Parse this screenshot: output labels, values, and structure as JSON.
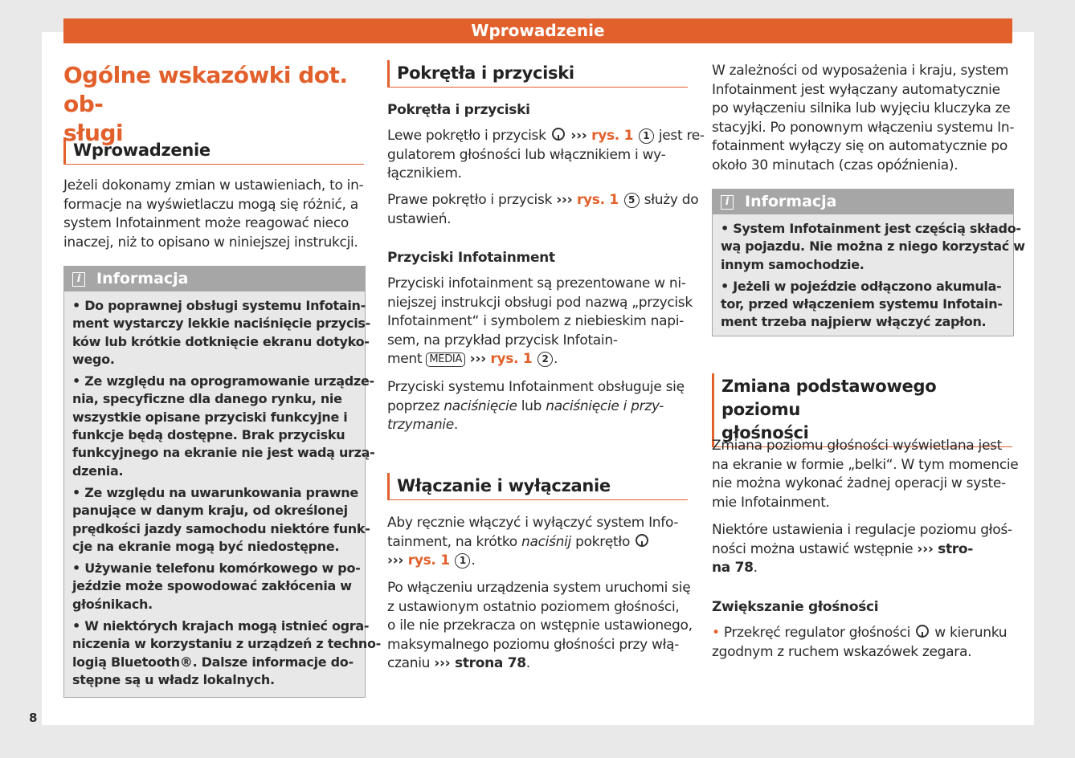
{
  "header": {
    "title": "Wprowadzenie"
  },
  "page_number": "8",
  "col1": {
    "title": [
      "Ogólne wskazówki dot. ob-",
      "sługi"
    ],
    "heading": "Wprowadzenie",
    "p1": [
      "Jeżeli dokonamy zmian w ustawieniach, to in-",
      "formacje na wyświetlaczu mogą się różnić, a",
      "system Infotainment może reagować nieco",
      "inaczej, niż to opisano w niniejszej instrukcji."
    ],
    "info": {
      "title": "Informacja",
      "icon": "info-icon",
      "b1": [
        "• Do poprawnej obsługi systemu Infotain-",
        "ment wystarczy lekkie naciśnięcie przycis-",
        "ków lub krótkie dotknięcie ekranu dotyko-",
        "wego."
      ],
      "b2": [
        "• Ze względu na oprogramowanie urządze-",
        "nia, specyficzne dla danego rynku, nie",
        "wszystkie opisane przyciski funkcyjne i",
        "funkcje będą dostępne. Brak przycisku",
        "funkcyjnego na ekranie nie jest wadą urzą-",
        "dzenia."
      ],
      "b3": [
        "• Ze względu na uwarunkowania prawne",
        "panujące w danym kraju, od określonej",
        "prędkości jazdy samochodu niektóre funk-",
        "cje na ekranie mogą być niedostępne."
      ],
      "b4": [
        "• Używanie telefonu komórkowego w po-",
        "jeździe może spowodować zakłócenia w",
        "głośnikach."
      ],
      "b5": [
        "• W niektórych krajach mogą istnieć ogra-",
        "niczenia w korzystaniu z urządzeń z techno-",
        "logią Bluetooth®. Dalsze informacje do-",
        "stępne są u władz lokalnych."
      ]
    }
  },
  "col2": {
    "heading1": "Pokrętła i przyciski",
    "sub1": [
      "Pokrętła i przyciski"
    ],
    "p1": [
      [
        [
          "Lewe pokrętło i przycisk ",
          ""
        ],
        [
          "",
          "k"
        ],
        [
          " ››› ",
          "b"
        ],
        [
          "rys. 1 ",
          "o"
        ],
        [
          "1",
          "c"
        ],
        [
          " jest re-",
          ""
        ]
      ],
      "gulatorem głośności lub włącznikiem i wy-",
      "łącznikiem."
    ],
    "p2": [
      [
        [
          "Prawe pokrętło i przycisk ",
          ""
        ],
        [
          "››› ",
          "b"
        ],
        [
          "rys. 1 ",
          "o"
        ],
        [
          "5",
          "c"
        ],
        [
          " służy do",
          ""
        ]
      ],
      "ustawień."
    ],
    "sub2": [
      "Przyciski Infotainment"
    ],
    "p3": [
      "Przyciski infotainment są prezentowane w ni-",
      "niejszej instrukcji obsługi pod nazwą „przycisk",
      "Infotainment“ i symbolem z niebieskim napi-",
      "sem, na przykład przycisk Infotain-",
      [
        [
          "ment ",
          ""
        ],
        [
          "MEDIA",
          "m"
        ],
        [
          " ››› ",
          "b"
        ],
        [
          "rys. 1 ",
          "o"
        ],
        [
          "2",
          "c"
        ],
        [
          ".",
          ""
        ]
      ]
    ],
    "p4": [
      "Przyciski systemu Infotainment obsługuje się",
      [
        [
          "poprzez ",
          ""
        ],
        [
          "naciśnięcie",
          "i"
        ],
        [
          " lub ",
          ""
        ],
        [
          "naciśnięcie i przy-",
          "i"
        ]
      ],
      [
        [
          "trzymanie",
          "i"
        ],
        [
          ".",
          ""
        ]
      ]
    ],
    "heading2": "Włączanie i wyłączanie",
    "p5": [
      "Aby ręcznie włączyć i wyłączyć system Info-",
      [
        [
          "tainment, na krótko ",
          ""
        ],
        [
          "naciśnij",
          "i"
        ],
        [
          " pokrętło ",
          ""
        ],
        [
          "",
          "k"
        ]
      ],
      [
        [
          "››› ",
          "b"
        ],
        [
          "rys. 1 ",
          "o"
        ],
        [
          "1",
          "c"
        ],
        [
          ".",
          ""
        ]
      ]
    ],
    "p6": [
      "Po włączeniu urządzenia system uruchomi się",
      "z ustawionym ostatnio poziomem głośności,",
      "o ile nie przekracza on wstępnie ustawionego,",
      "maksymalnego poziomu głośności przy włą-",
      [
        [
          "czaniu ",
          ""
        ],
        [
          "››› strona 78",
          "b"
        ],
        [
          ".",
          ""
        ]
      ]
    ]
  },
  "col3": {
    "p1": [
      "W zależności od wyposażenia i kraju, system",
      "Infotainment jest wyłączany automatycznie",
      "po wyłączeniu silnika lub wyjęciu kluczyka ze",
      "stacyjki. Po ponownym włączeniu systemu In-",
      "fotainment wyłączy się on automatycznie po",
      "około 30 minutach (czas opóźnienia)."
    ],
    "info": {
      "title": "Informacja",
      "icon": "info-icon",
      "b1": [
        "• System Infotainment jest częścią składo-",
        "wą pojazdu. Nie można z niego korzystać w",
        "innym samochodzie."
      ],
      "b2": [
        "• Jeżeli w pojeździe odłączono akumula-",
        "tor, przed włączeniem systemu Infotain-",
        "ment trzeba najpierw włączyć zapłon."
      ]
    },
    "heading": [
      "Zmiana podstawowego poziomu",
      "głośności"
    ],
    "p2": [
      "Zmiana poziomu głośności wyświetlana jest",
      "na ekranie w formie „belki“. W tym momencie",
      "nie można wykonać żadnej operacji w syste-",
      "mie Infotainment."
    ],
    "p3": [
      "Niektóre ustawienia i regulacje poziomu głoś-",
      [
        [
          "ności można ustawić wstępnie ",
          ""
        ],
        [
          "››› stro-",
          "b"
        ]
      ],
      [
        [
          "na 78",
          "b"
        ],
        [
          ".",
          ""
        ]
      ]
    ],
    "sub": [
      "Zwiększanie głośności"
    ],
    "p4": [
      [
        [
          "• ",
          "dot"
        ],
        [
          "Przekręć regulator głośności ",
          ""
        ],
        [
          "",
          "k"
        ],
        [
          " w kierunku",
          ""
        ]
      ],
      "zgodnym z ruchem wskazówek zegara."
    ]
  },
  "colors": {
    "accent": "#e2602b",
    "info_header": "#a6a6a6",
    "info_body": "#e8e8e8"
  }
}
